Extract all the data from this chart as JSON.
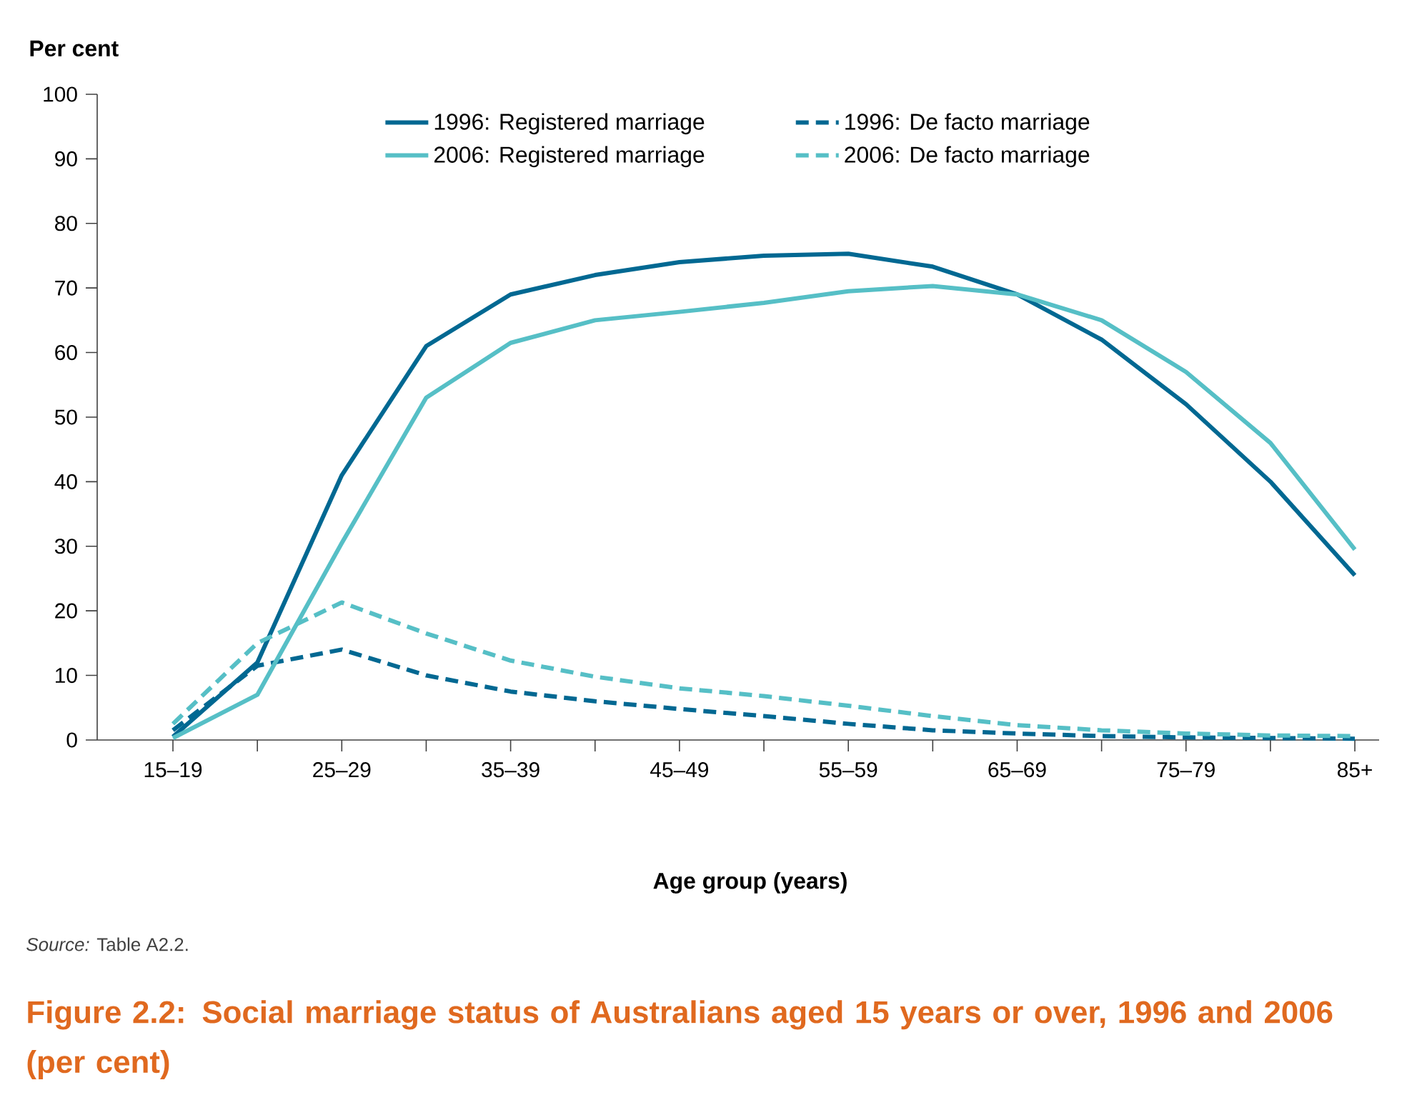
{
  "chart_data": {
    "type": "line",
    "title": "Figure 2.2: Social marriage status of Australians aged 15 years or over, 1996 and 2006 (per cent)",
    "ylabel": "Per cent",
    "xlabel": "Age group (years)",
    "annotations": [
      "*Source:* Table A2.2."
    ],
    "categories": [
      "15–19",
      null,
      "25–29",
      null,
      "35–39",
      null,
      "45–49",
      null,
      "55–59",
      null,
      "65–69",
      null,
      "75–79",
      null,
      "85+"
    ],
    "series": [
      {
        "name": "1996: Registered marriage",
        "color": "#006892",
        "line_style": "solid",
        "values": [
          0.5,
          12,
          41,
          61,
          69,
          72,
          74,
          75,
          75.3,
          73.3,
          69,
          62,
          52,
          40,
          25.5
        ]
      },
      {
        "name": "1996: De facto marriage",
        "color": "#006892",
        "line_style": "dashed",
        "values": [
          1.5,
          11.5,
          14,
          10,
          7.5,
          6,
          4.8,
          3.7,
          2.5,
          1.5,
          1,
          0.6,
          0.4,
          0.3,
          0.2
        ]
      },
      {
        "name": "2006: Registered marriage",
        "color": "#56bfc6",
        "line_style": "solid",
        "values": [
          0.3,
          7,
          30.5,
          53,
          61.5,
          65,
          66.3,
          67.7,
          69.5,
          70.3,
          69,
          65,
          57,
          46,
          29.5
        ]
      },
      {
        "name": "2006: De facto marriage",
        "color": "#56bfc6",
        "line_style": "dashed",
        "values": [
          2.5,
          15,
          21.3,
          16.5,
          12.3,
          9.8,
          8,
          6.8,
          5.3,
          3.7,
          2.3,
          1.5,
          1,
          0.7,
          0.6
        ]
      }
    ],
    "ylim": [
      0,
      100
    ],
    "yticks": [
      0,
      10,
      20,
      30,
      40,
      50,
      60,
      70,
      80,
      90,
      100
    ],
    "grid": false,
    "legend": "top",
    "marker": "none"
  }
}
